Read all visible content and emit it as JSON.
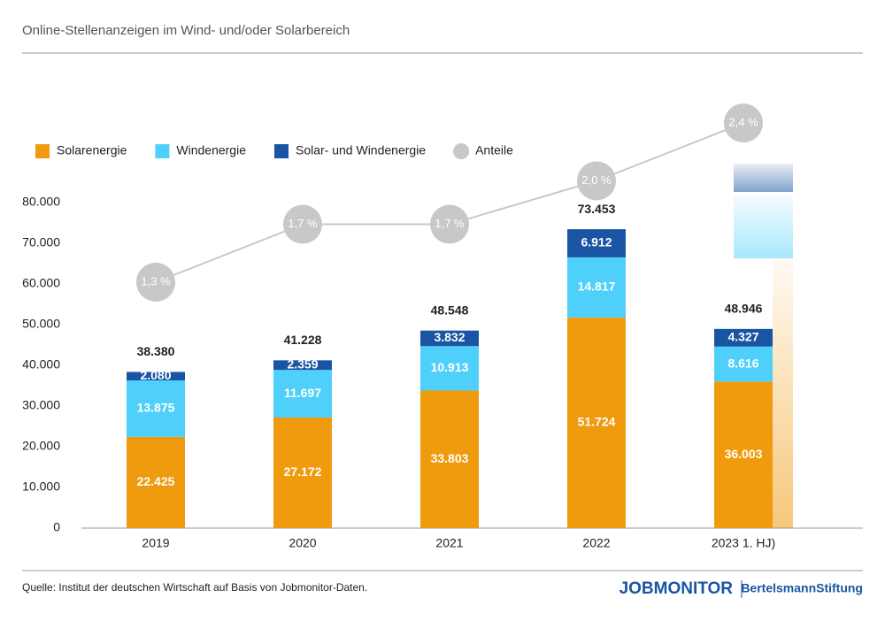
{
  "chart_data": {
    "type": "stacked_bar_line",
    "title": "Online-Stellenanzeigen im Wind- und/oder Solarbereich",
    "categories": [
      "2019",
      "2020",
      "2021",
      "2022",
      "2023 1. HJ)"
    ],
    "series": [
      {
        "name": "Solarenergie",
        "color": "#f09a0e",
        "values": [
          22425,
          27172,
          33803,
          51724,
          36003
        ],
        "value_labels": [
          "22.425",
          "27.172",
          "33.803",
          "51.724",
          "36.003"
        ]
      },
      {
        "name": "Windenergie",
        "color": "#4fd0fb",
        "values": [
          13875,
          11697,
          10913,
          14817,
          8616
        ],
        "value_labels": [
          "13.875",
          "11.697",
          "10.913",
          "14.817",
          "8.616"
        ]
      },
      {
        "name": "Solar- und Windenergie",
        "color": "#1a55a5",
        "values": [
          2080,
          2359,
          3832,
          6912,
          4327
        ],
        "value_labels": [
          "2.080",
          "2.359",
          "3.832",
          "6.912",
          "4.327"
        ]
      },
      {
        "name": "Anteile",
        "color": "#c8c8c8",
        "axis": "y2",
        "values": [
          1.3,
          1.7,
          1.7,
          2.0,
          2.4
        ],
        "value_labels": [
          "1,3 %",
          "1,7 %",
          "1,7 %",
          "2,0 %",
          "2,4 %"
        ]
      }
    ],
    "totals": {
      "values": [
        38380,
        41228,
        48548,
        73453,
        48946
      ],
      "value_labels": [
        "38.380",
        "41.228",
        "48.548",
        "73.453",
        "48.946"
      ]
    },
    "ylim": [
      0,
      80000
    ],
    "yticks": [
      0,
      {
        "value": 10000,
        "label": "10.000"
      },
      {
        "value": 20000,
        "label": "20.000"
      },
      {
        "value": 30000,
        "label": "30.000"
      },
      {
        "value": 40000,
        "label": "40.000"
      },
      {
        "value": 50000,
        "label": "50.000"
      },
      {
        "value": 60000,
        "label": "60.000"
      },
      {
        "value": 70000,
        "label": "70.000"
      },
      {
        "value": 80000,
        "label": "80.000"
      }
    ],
    "y2lim": [
      -0.4,
      1.85
    ],
    "legend": "top-left",
    "source": "Quelle: Institut der deutschen Wirtschaft auf Basis von Jobmonitor-Daten.",
    "logo": {
      "left": "JOBMONITOR",
      "right": "BertelsmannStiftung"
    }
  }
}
